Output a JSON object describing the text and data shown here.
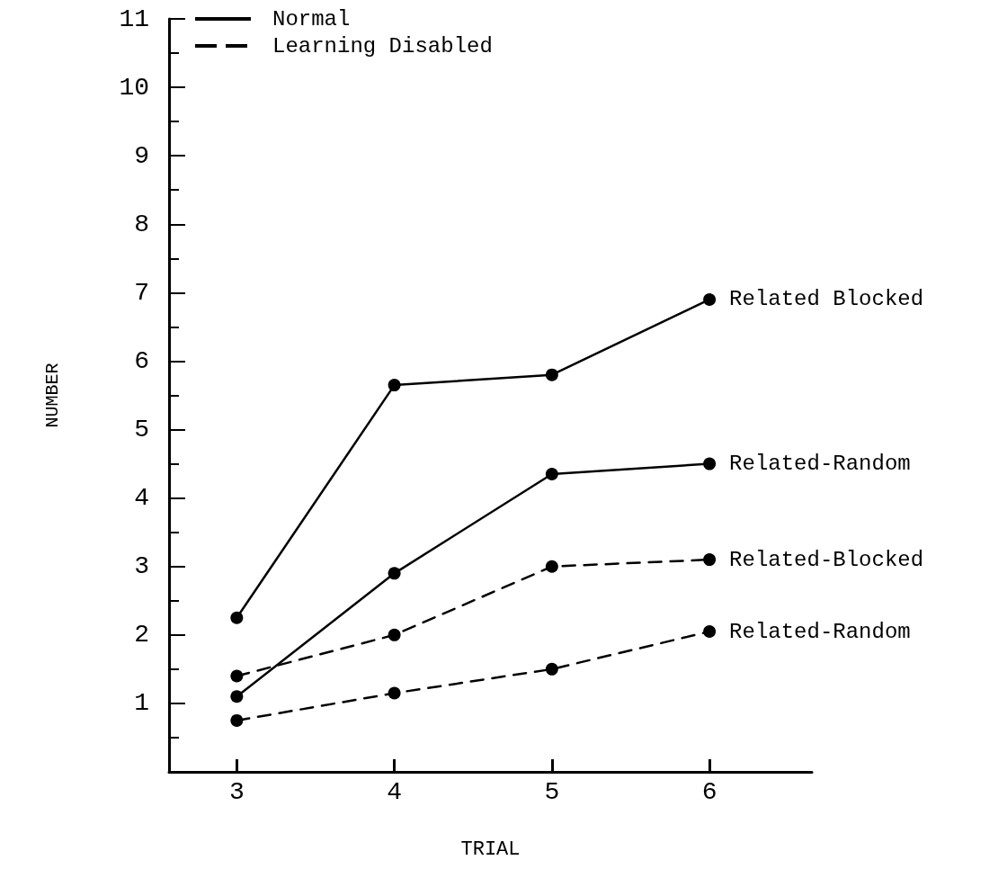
{
  "chart_data": {
    "type": "line",
    "xlabel": "TRIAL",
    "ylabel": "NUMBER",
    "x": [
      3,
      4,
      5,
      6
    ],
    "xlim": [
      2.57,
      6.65
    ],
    "xticks": [
      3,
      4,
      5,
      6
    ],
    "ylim": [
      0,
      11
    ],
    "yticks": [
      {
        "value": 0.5,
        "label": null
      },
      1,
      {
        "value": 1.5,
        "label": null
      },
      2,
      {
        "value": 2.5,
        "label": null
      },
      3,
      {
        "value": 3.5,
        "label": null
      },
      4,
      {
        "value": 4.5,
        "label": null
      },
      5,
      {
        "value": 5.5,
        "label": null
      },
      6,
      {
        "value": 6.5,
        "label": null
      },
      7,
      {
        "value": 7.5,
        "label": null
      },
      8,
      {
        "value": 8.5,
        "label": null
      },
      9,
      {
        "value": 9.5,
        "label": null
      },
      10,
      {
        "value": 10.5,
        "label": null
      },
      11
    ],
    "grid": false,
    "legend": false,
    "marker": "circle",
    "annotations": [
      "Normal",
      "Learning Disabled"
    ],
    "series": [
      {
        "name": "Related Blocked",
        "color": "#000000",
        "line_style": "solid",
        "values": [
          2.25,
          5.65,
          5.8,
          6.9
        ]
      },
      {
        "name": "Related-Random",
        "color": "#000000",
        "line_style": "solid",
        "values": [
          1.1,
          2.9,
          4.35,
          4.5
        ]
      },
      {
        "name": "Related-Blocked",
        "color": "#000000",
        "line_style": "dashed",
        "values": [
          1.4,
          2.0,
          3.0,
          3.1
        ]
      },
      {
        "name": "Related-Random",
        "color": "#000000",
        "line_style": "dashed",
        "values": [
          0.75,
          1.15,
          1.5,
          2.05
        ]
      }
    ]
  }
}
